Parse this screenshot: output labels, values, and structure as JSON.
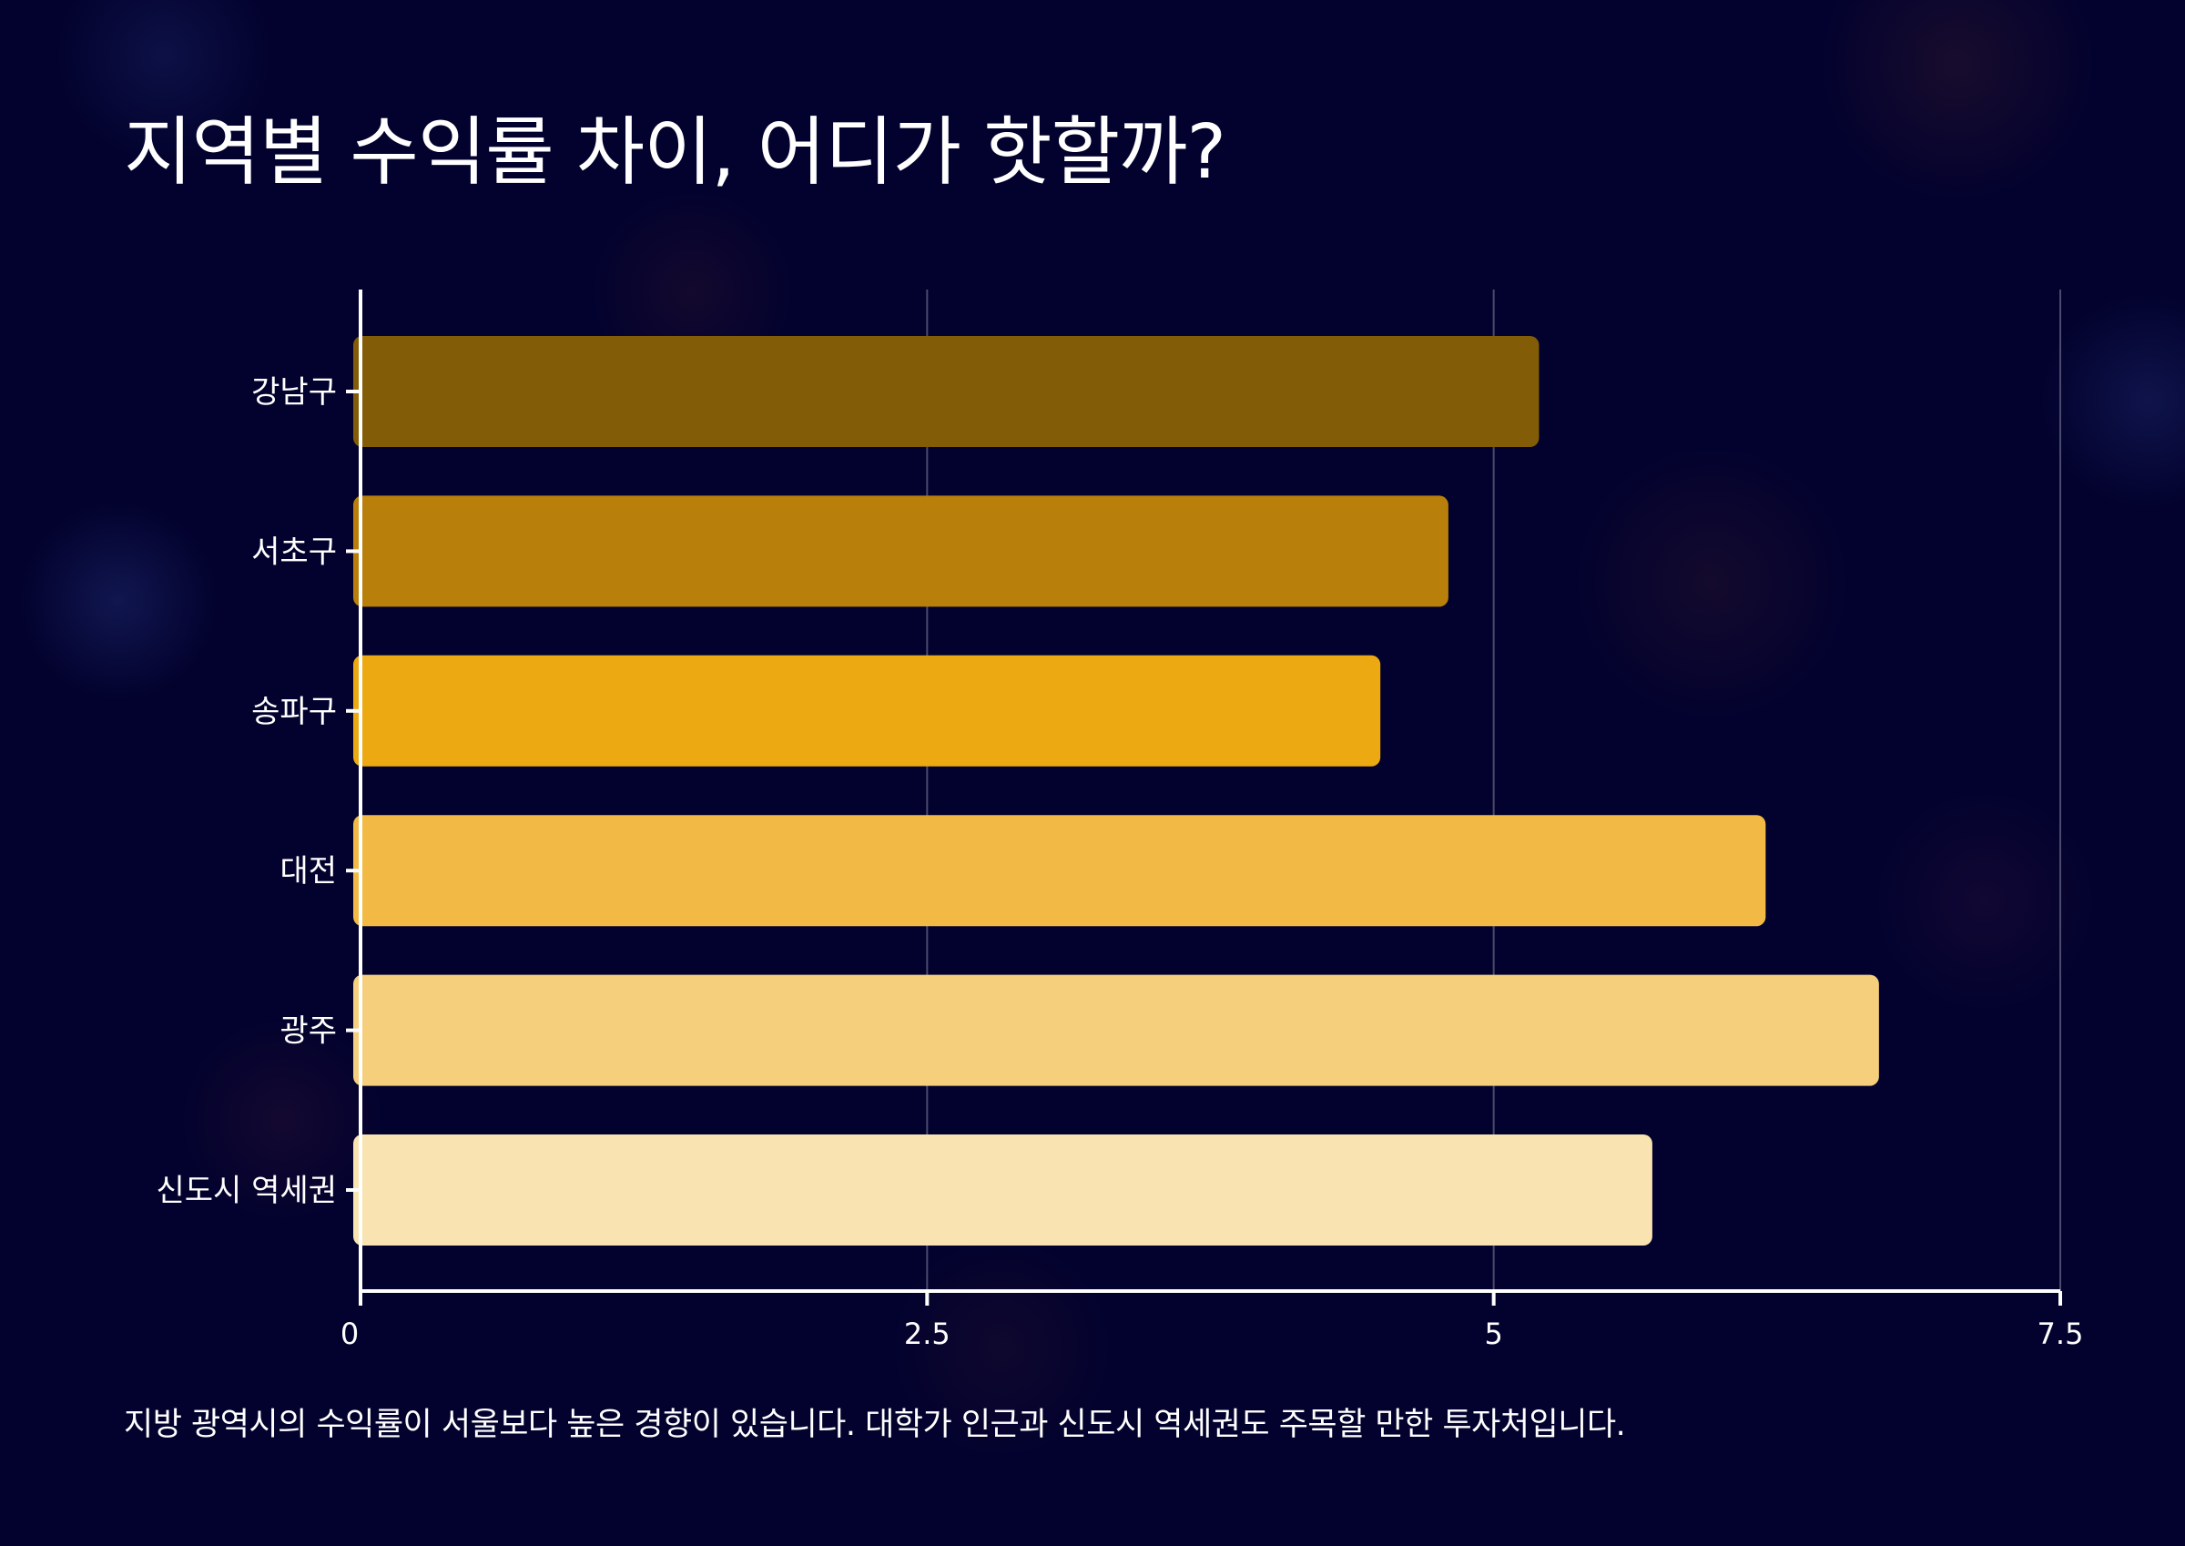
{
  "title": "지역별 수익률 차이, 어디가 핫할까?",
  "caption": "지방 광역시의 수익률이 서울보다 높은 경향이 있습니다. 대학가 인근과 신도시 역세권도 주목할 만한 투자처입니다.",
  "colors": {
    "background": "#03022e",
    "axis": "#ffffff",
    "grid": "#4a4a6e"
  },
  "chart_data": {
    "type": "bar",
    "orientation": "horizontal",
    "categories": [
      "강남구",
      "서초구",
      "송파구",
      "대전",
      "광주",
      "신도시 역세권"
    ],
    "values": [
      5.2,
      4.8,
      4.5,
      6.2,
      6.7,
      5.7
    ],
    "bar_colors": [
      "#835c07",
      "#b97f0b",
      "#eda912",
      "#f2ba44",
      "#f5cf7c",
      "#f9e3b0"
    ],
    "xlim": [
      0,
      7.5
    ],
    "xticks": [
      0,
      2.5,
      5,
      7.5
    ],
    "xtick_labels": [
      "0",
      "2.5",
      "5",
      "7.5"
    ],
    "grid": true,
    "xlabel": "",
    "ylabel": ""
  }
}
